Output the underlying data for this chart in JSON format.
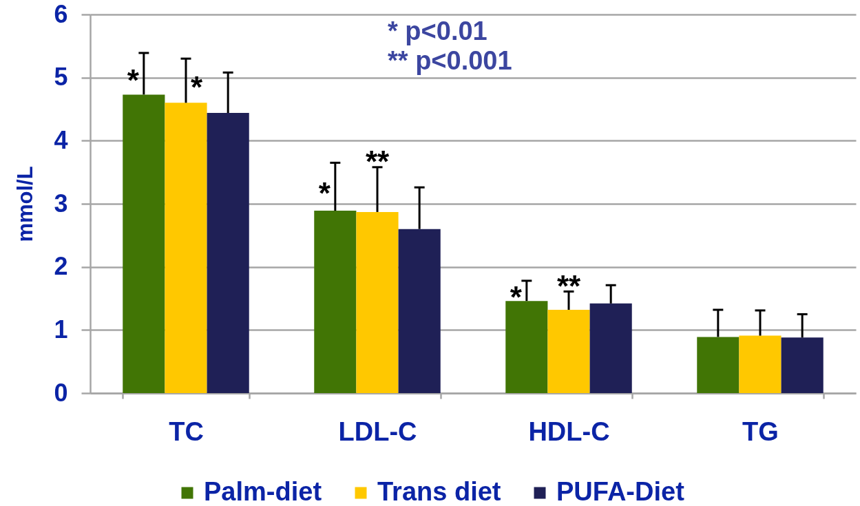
{
  "chart_data": {
    "type": "bar",
    "ylabel": "mmol/L",
    "categories": [
      "TC",
      "LDL-C",
      "HDL-C",
      "TG"
    ],
    "series": [
      {
        "name": "Palm-diet",
        "color": "#417505",
        "values": [
          4.73,
          2.89,
          1.46,
          0.89
        ],
        "errors": [
          [
            4.73,
            5.39
          ],
          [
            2.89,
            3.65
          ],
          [
            1.46,
            1.78
          ],
          [
            0.89,
            1.32
          ]
        ]
      },
      {
        "name": "Trans diet",
        "color": "#ffc800",
        "values": [
          4.6,
          2.87,
          1.32,
          0.91
        ],
        "errors": [
          [
            4.6,
            5.3
          ],
          [
            2.87,
            3.58
          ],
          [
            1.32,
            1.61
          ],
          [
            0.91,
            1.31
          ]
        ]
      },
      {
        "name": "PUFA-Diet",
        "color": "#1f2056",
        "values": [
          4.44,
          2.6,
          1.42,
          0.88
        ],
        "errors": [
          [
            4.44,
            5.08
          ],
          [
            2.6,
            3.26
          ],
          [
            1.42,
            1.71
          ],
          [
            0.88,
            1.25
          ]
        ]
      }
    ],
    "ylim": [
      0,
      6
    ],
    "yticks": [
      0,
      1,
      2,
      3,
      4,
      5,
      6
    ],
    "grid": "y",
    "legend": "bottom",
    "annotations": [
      {
        "text": "*",
        "x": "TC",
        "y": 4.73
      },
      {
        "text": "*",
        "x": "TC",
        "y": 4.6
      },
      {
        "text": "*",
        "x": "LDL-C",
        "y": 2.89
      },
      {
        "text": "**",
        "x": "LDL-C",
        "y": 2.87
      },
      {
        "text": "*",
        "x": "HDL-C",
        "y": 1.46
      },
      {
        "text": "**",
        "x": "HDL-C",
        "y": 1.32
      },
      "* p<0.01",
      "** p<0.001"
    ]
  }
}
